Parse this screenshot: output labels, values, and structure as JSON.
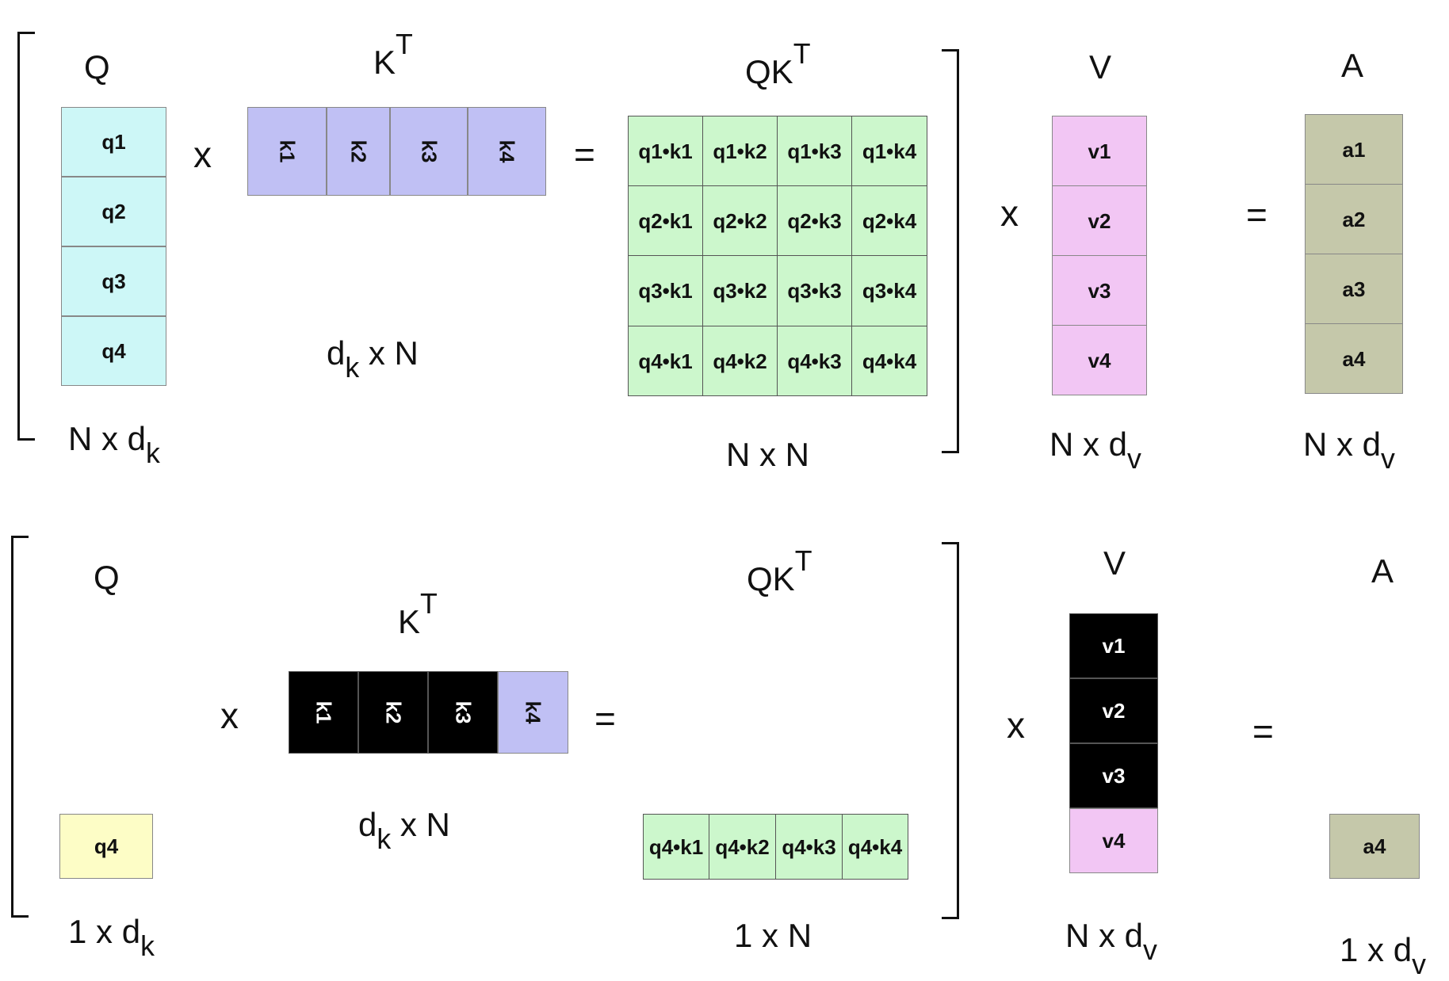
{
  "colors": {
    "query": "#cdf7f7",
    "key": "#c0c0f4",
    "score": "#ccf7cc",
    "value": "#f2c6f4",
    "output": "#c5c8aa",
    "current_query": "#fdfdc6",
    "masked": "#000000"
  },
  "operators": {
    "times": "x",
    "equals": "="
  },
  "top": {
    "q": {
      "title": "Q",
      "cells": [
        "q1",
        "q2",
        "q3",
        "q4"
      ],
      "dim": {
        "a": "N x d",
        "b": "k"
      }
    },
    "kt": {
      "title": "K",
      "sup": "T",
      "cells": [
        "k1",
        "k2",
        "k3",
        "k4"
      ],
      "dim": {
        "a": "d",
        "b": "k",
        "c": " x N"
      }
    },
    "qkt": {
      "title": "QK",
      "sup": "T",
      "rows": [
        [
          "q1•k1",
          "q1•k2",
          "q1•k3",
          "q1•k4"
        ],
        [
          "q2•k1",
          "q2•k2",
          "q2•k3",
          "q2•k4"
        ],
        [
          "q3•k1",
          "q3•k2",
          "q3•k3",
          "q3•k4"
        ],
        [
          "q4•k1",
          "q4•k2",
          "q4•k3",
          "q4•k4"
        ]
      ],
      "dim": "N x N"
    },
    "v": {
      "title": "V",
      "cells": [
        "v1",
        "v2",
        "v3",
        "v4"
      ],
      "dim": {
        "a": "N x d",
        "b": "v"
      }
    },
    "a": {
      "title": "A",
      "cells": [
        "a1",
        "a2",
        "a3",
        "a4"
      ],
      "dim": {
        "a": "N x d",
        "b": "v"
      }
    }
  },
  "bottom": {
    "q": {
      "title": "Q",
      "cell": "q4",
      "dim": {
        "a": "1 x d",
        "b": "k"
      }
    },
    "kt": {
      "title": "K",
      "sup": "T",
      "cells": [
        "k1",
        "k2",
        "k3",
        "k4"
      ],
      "masked": [
        true,
        true,
        true,
        false
      ],
      "dim": {
        "a": "d",
        "b": "k",
        "c": " x N"
      }
    },
    "qkt": {
      "title": "QK",
      "sup": "T",
      "cells": [
        "q4•k1",
        "q4•k2",
        "q4•k3",
        "q4•k4"
      ],
      "dim": "1 x N"
    },
    "v": {
      "title": "V",
      "cells": [
        "v1",
        "v2",
        "v3",
        "v4"
      ],
      "masked": [
        true,
        true,
        true,
        false
      ],
      "dim": {
        "a": "N x d",
        "b": "v"
      }
    },
    "a": {
      "title": "A",
      "cell": "a4",
      "dim": {
        "a": "1 x d",
        "b": "v"
      }
    }
  }
}
